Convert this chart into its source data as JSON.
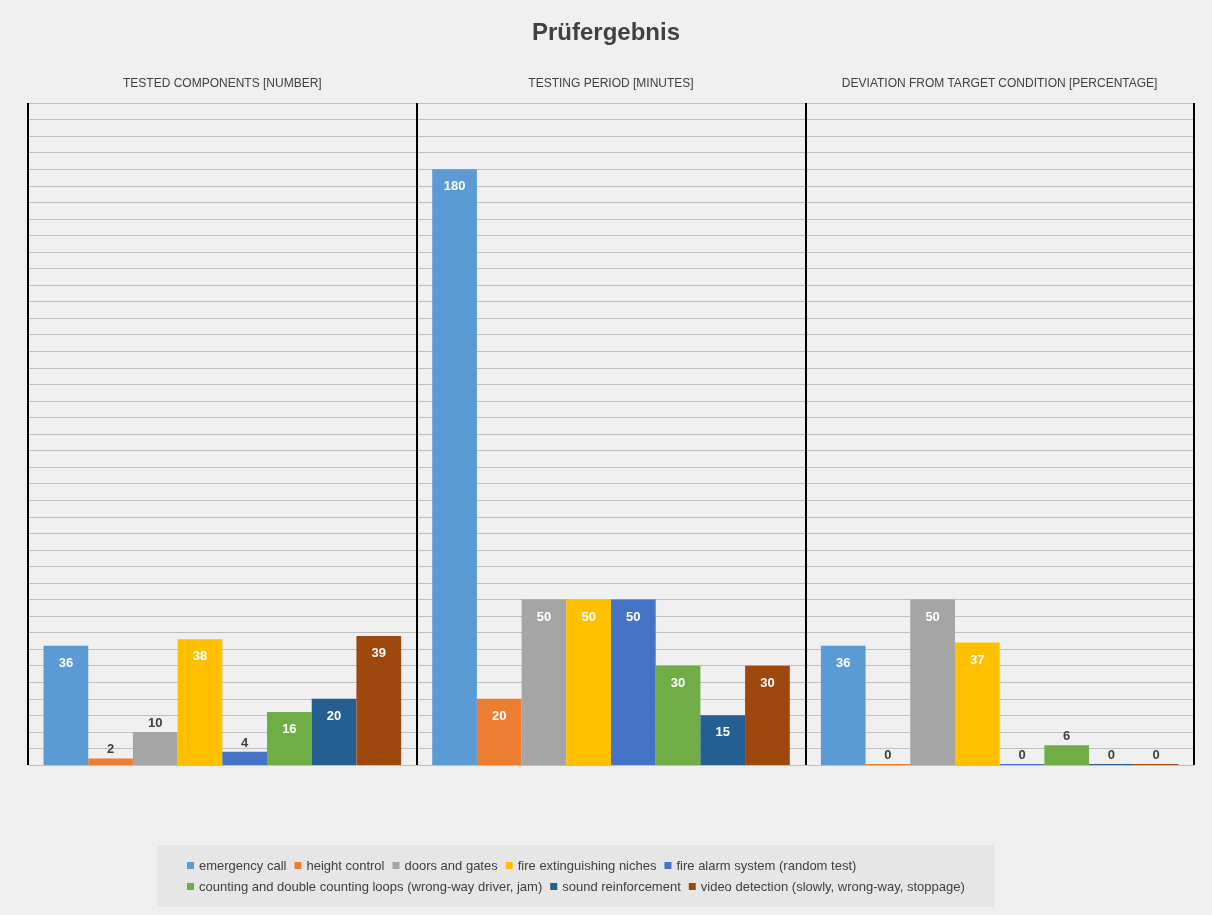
{
  "chart_data": {
    "type": "bar",
    "title": "Prüfergebnis",
    "categories": [
      "TESTED COMPONENTS [NUMBER]",
      "TESTING PERIOD [MINUTES]",
      "DEVIATION FROM TARGET CONDITION [PERCENTAGE]"
    ],
    "series": [
      {
        "name": "emergency call",
        "color": "#5b9bd5",
        "values": [
          36,
          180,
          36
        ]
      },
      {
        "name": "height control",
        "color": "#ed7d31",
        "values": [
          2,
          20,
          0
        ]
      },
      {
        "name": "doors and gates",
        "color": "#a5a5a5",
        "values": [
          10,
          50,
          50
        ]
      },
      {
        "name": "fire extinguishing niches",
        "color": "#ffc000",
        "values": [
          38,
          50,
          37
        ]
      },
      {
        "name": "fire alarm system (random test)",
        "color": "#4472c4",
        "values": [
          4,
          50,
          0
        ]
      },
      {
        "name": "counting and double counting loops (wrong-way driver, jam)",
        "color": "#70ad47",
        "values": [
          16,
          30,
          6
        ]
      },
      {
        "name": "sound reinforcement",
        "color": "#255e91",
        "values": [
          20,
          15,
          0
        ]
      },
      {
        "name": "video detection (slowly, wrong-way, stoppage)",
        "color": "#9e480e",
        "values": [
          39,
          30,
          0
        ]
      }
    ],
    "ylim": [
      0,
      200
    ],
    "yticks": [
      {
        "value": 0,
        "label": null
      },
      {
        "value": 5,
        "label": null
      },
      {
        "value": 10,
        "label": null
      },
      {
        "value": 15,
        "label": null
      },
      {
        "value": 20,
        "label": null
      },
      {
        "value": 25,
        "label": null
      },
      {
        "value": 30,
        "label": null
      },
      {
        "value": 35,
        "label": null
      },
      {
        "value": 40,
        "label": null
      },
      {
        "value": 45,
        "label": null
      },
      {
        "value": 50,
        "label": null
      },
      {
        "value": 55,
        "label": null
      },
      {
        "value": 60,
        "label": null
      },
      {
        "value": 65,
        "label": null
      },
      {
        "value": 70,
        "label": null
      },
      {
        "value": 75,
        "label": null
      },
      {
        "value": 80,
        "label": null
      },
      {
        "value": 85,
        "label": null
      },
      {
        "value": 90,
        "label": null
      },
      {
        "value": 95,
        "label": null
      },
      {
        "value": 100,
        "label": null
      },
      {
        "value": 105,
        "label": null
      },
      {
        "value": 110,
        "label": null
      },
      {
        "value": 115,
        "label": null
      },
      {
        "value": 120,
        "label": null
      },
      {
        "value": 125,
        "label": null
      },
      {
        "value": 130,
        "label": null
      },
      {
        "value": 135,
        "label": null
      },
      {
        "value": 140,
        "label": null
      },
      {
        "value": 145,
        "label": null
      },
      {
        "value": 150,
        "label": null
      },
      {
        "value": 155,
        "label": null
      },
      {
        "value": 160,
        "label": null
      },
      {
        "value": 165,
        "label": null
      },
      {
        "value": 170,
        "label": null
      },
      {
        "value": 175,
        "label": null
      },
      {
        "value": 180,
        "label": null
      },
      {
        "value": 185,
        "label": null
      },
      {
        "value": 190,
        "label": null
      },
      {
        "value": 195,
        "label": null
      },
      {
        "value": 200,
        "label": null
      }
    ],
    "tick_labels": "x",
    "grid": "y",
    "data_labels": true,
    "legend": "bottom"
  }
}
